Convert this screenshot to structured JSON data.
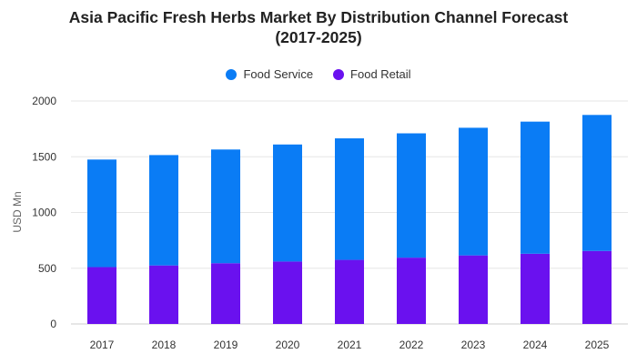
{
  "chart_data": {
    "type": "bar",
    "stacked": true,
    "title_line1": "Asia Pacific Fresh Herbs Market By Distribution Channel Forecast",
    "title_line2": "(2017-2025)",
    "ylabel": "USD Mn",
    "xlabel": "",
    "ylim": [
      0,
      2000
    ],
    "yticks": [
      0,
      500,
      1000,
      1500,
      2000
    ],
    "grid": true,
    "legend_position": "top-center",
    "categories": [
      "2017",
      "2018",
      "2019",
      "2020",
      "2021",
      "2022",
      "2023",
      "2024",
      "2025"
    ],
    "series": [
      {
        "name": "Food Retail",
        "color": "#6a11ef",
        "values": [
          510,
          525,
          545,
          560,
          575,
          595,
          615,
          630,
          655
        ]
      },
      {
        "name": "Food Service",
        "color": "#0a7cf5",
        "values": [
          965,
          990,
          1020,
          1050,
          1090,
          1115,
          1145,
          1185,
          1220
        ]
      }
    ]
  },
  "legend": {
    "items": [
      {
        "label": "Food Service",
        "color": "#0a7cf5"
      },
      {
        "label": "Food Retail",
        "color": "#6a11ef"
      }
    ]
  }
}
